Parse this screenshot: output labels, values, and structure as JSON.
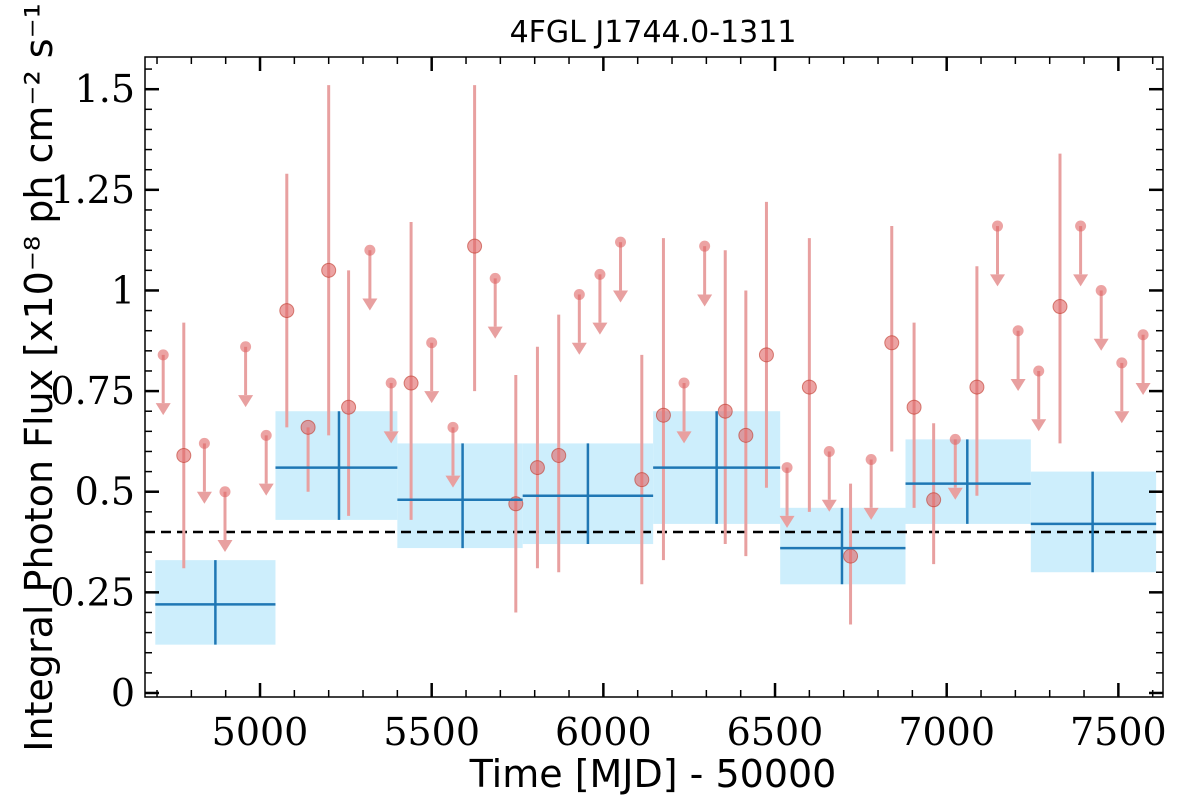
{
  "chart_data": {
    "type": "scatter",
    "title": "4FGL J1744.0-1311",
    "xlabel": "Time [MJD] - 50000",
    "ylabel": "Integral Photon Flux [x10⁻⁸ ph cm⁻² s⁻¹]",
    "xlim": [
      4665,
      7630
    ],
    "ylim": [
      -0.01,
      1.58
    ],
    "x_ticks": [
      5000,
      5500,
      6000,
      6500,
      7000,
      7500
    ],
    "x_tick_labels": [
      "5000",
      "5500",
      "6000",
      "6500",
      "7000",
      "7500"
    ],
    "y_ticks": [
      0,
      0.25,
      0.5,
      0.75,
      1.0,
      1.25,
      1.5
    ],
    "y_tick_labels": [
      "0",
      "0.25",
      "0.5",
      "0.75",
      "1",
      "1.25",
      "1.5"
    ],
    "grid": false,
    "reference_line": {
      "y": 0.4,
      "style": "dashed",
      "color": "#000000"
    },
    "colors": {
      "fine_points": "#e06666",
      "fine_errorbars": "#e8a0a0",
      "bin_fill": "#cdeefc",
      "bin_line": "#1f77b4"
    },
    "series": [
      {
        "kind": "detections",
        "points": [
          {
            "x": 4778,
            "y": 0.59,
            "ylo": 0.31,
            "yhi": 0.92
          },
          {
            "x": 5078,
            "y": 0.95,
            "ylo": 0.66,
            "yhi": 1.29
          },
          {
            "x": 5140,
            "y": 0.66,
            "ylo": 0.5,
            "yhi": 0.66
          },
          {
            "x": 5200,
            "y": 1.05,
            "ylo": 0.64,
            "yhi": 1.51
          },
          {
            "x": 5258,
            "y": 0.71,
            "ylo": 0.44,
            "yhi": 1.05
          },
          {
            "x": 5440,
            "y": 0.77,
            "ylo": 0.43,
            "yhi": 1.17
          },
          {
            "x": 5625,
            "y": 1.11,
            "ylo": 0.75,
            "yhi": 1.51
          },
          {
            "x": 5745,
            "y": 0.47,
            "ylo": 0.2,
            "yhi": 0.79
          },
          {
            "x": 5808,
            "y": 0.56,
            "ylo": 0.31,
            "yhi": 0.86
          },
          {
            "x": 5870,
            "y": 0.59,
            "ylo": 0.3,
            "yhi": 0.94
          },
          {
            "x": 6112,
            "y": 0.53,
            "ylo": 0.27,
            "yhi": 0.84
          },
          {
            "x": 6175,
            "y": 0.69,
            "ylo": 0.33,
            "yhi": 1.13
          },
          {
            "x": 6355,
            "y": 0.7,
            "ylo": 0.37,
            "yhi": 1.1
          },
          {
            "x": 6415,
            "y": 0.64,
            "ylo": 0.34,
            "yhi": 1.0
          },
          {
            "x": 6475,
            "y": 0.84,
            "ylo": 0.51,
            "yhi": 1.22
          },
          {
            "x": 6600,
            "y": 0.76,
            "ylo": 0.45,
            "yhi": 1.13
          },
          {
            "x": 6720,
            "y": 0.34,
            "ylo": 0.17,
            "yhi": 0.52
          },
          {
            "x": 6840,
            "y": 0.87,
            "ylo": 0.6,
            "yhi": 1.16
          },
          {
            "x": 6905,
            "y": 0.71,
            "ylo": 0.46,
            "yhi": 0.92
          },
          {
            "x": 6962,
            "y": 0.48,
            "ylo": 0.32,
            "yhi": 0.67
          },
          {
            "x": 7088,
            "y": 0.76,
            "ylo": 0.49,
            "yhi": 1.06
          },
          {
            "x": 7330,
            "y": 0.96,
            "ylo": 0.62,
            "yhi": 1.34
          }
        ]
      },
      {
        "kind": "upper_limits",
        "points": [
          {
            "x": 4718,
            "y": 0.84
          },
          {
            "x": 4838,
            "y": 0.62
          },
          {
            "x": 4898,
            "y": 0.5
          },
          {
            "x": 4958,
            "y": 0.86
          },
          {
            "x": 5018,
            "y": 0.64
          },
          {
            "x": 5320,
            "y": 1.1
          },
          {
            "x": 5382,
            "y": 0.77
          },
          {
            "x": 5500,
            "y": 0.87
          },
          {
            "x": 5562,
            "y": 0.66
          },
          {
            "x": 5685,
            "y": 1.03
          },
          {
            "x": 5930,
            "y": 0.99
          },
          {
            "x": 5990,
            "y": 1.04
          },
          {
            "x": 6050,
            "y": 1.12
          },
          {
            "x": 6235,
            "y": 0.77
          },
          {
            "x": 6295,
            "y": 1.11
          },
          {
            "x": 6535,
            "y": 0.56
          },
          {
            "x": 6658,
            "y": 0.6
          },
          {
            "x": 6780,
            "y": 0.58
          },
          {
            "x": 7025,
            "y": 0.63
          },
          {
            "x": 7148,
            "y": 1.16
          },
          {
            "x": 7208,
            "y": 0.9
          },
          {
            "x": 7268,
            "y": 0.8
          },
          {
            "x": 7390,
            "y": 1.16
          },
          {
            "x": 7450,
            "y": 1.0
          },
          {
            "x": 7510,
            "y": 0.82
          },
          {
            "x": 7572,
            "y": 0.89
          }
        ]
      },
      {
        "kind": "coarse_bins",
        "bins": [
          {
            "x0": 4695,
            "x1": 5045,
            "xc": 4870,
            "y": 0.22,
            "ylo": 0.12,
            "yhi": 0.33
          },
          {
            "x0": 5045,
            "x1": 5400,
            "xc": 5230,
            "y": 0.56,
            "ylo": 0.43,
            "yhi": 0.7
          },
          {
            "x0": 5400,
            "x1": 5765,
            "xc": 5590,
            "y": 0.48,
            "ylo": 0.36,
            "yhi": 0.62
          },
          {
            "x0": 5765,
            "x1": 6145,
            "xc": 5955,
            "y": 0.49,
            "ylo": 0.37,
            "yhi": 0.62
          },
          {
            "x0": 6145,
            "x1": 6515,
            "xc": 6330,
            "y": 0.56,
            "ylo": 0.42,
            "yhi": 0.7
          },
          {
            "x0": 6515,
            "x1": 6880,
            "xc": 6695,
            "y": 0.36,
            "ylo": 0.27,
            "yhi": 0.46
          },
          {
            "x0": 6880,
            "x1": 7245,
            "xc": 7060,
            "y": 0.52,
            "ylo": 0.42,
            "yhi": 0.63
          },
          {
            "x0": 7245,
            "x1": 7610,
            "xc": 7425,
            "y": 0.42,
            "ylo": 0.3,
            "yhi": 0.55
          }
        ]
      }
    ]
  }
}
